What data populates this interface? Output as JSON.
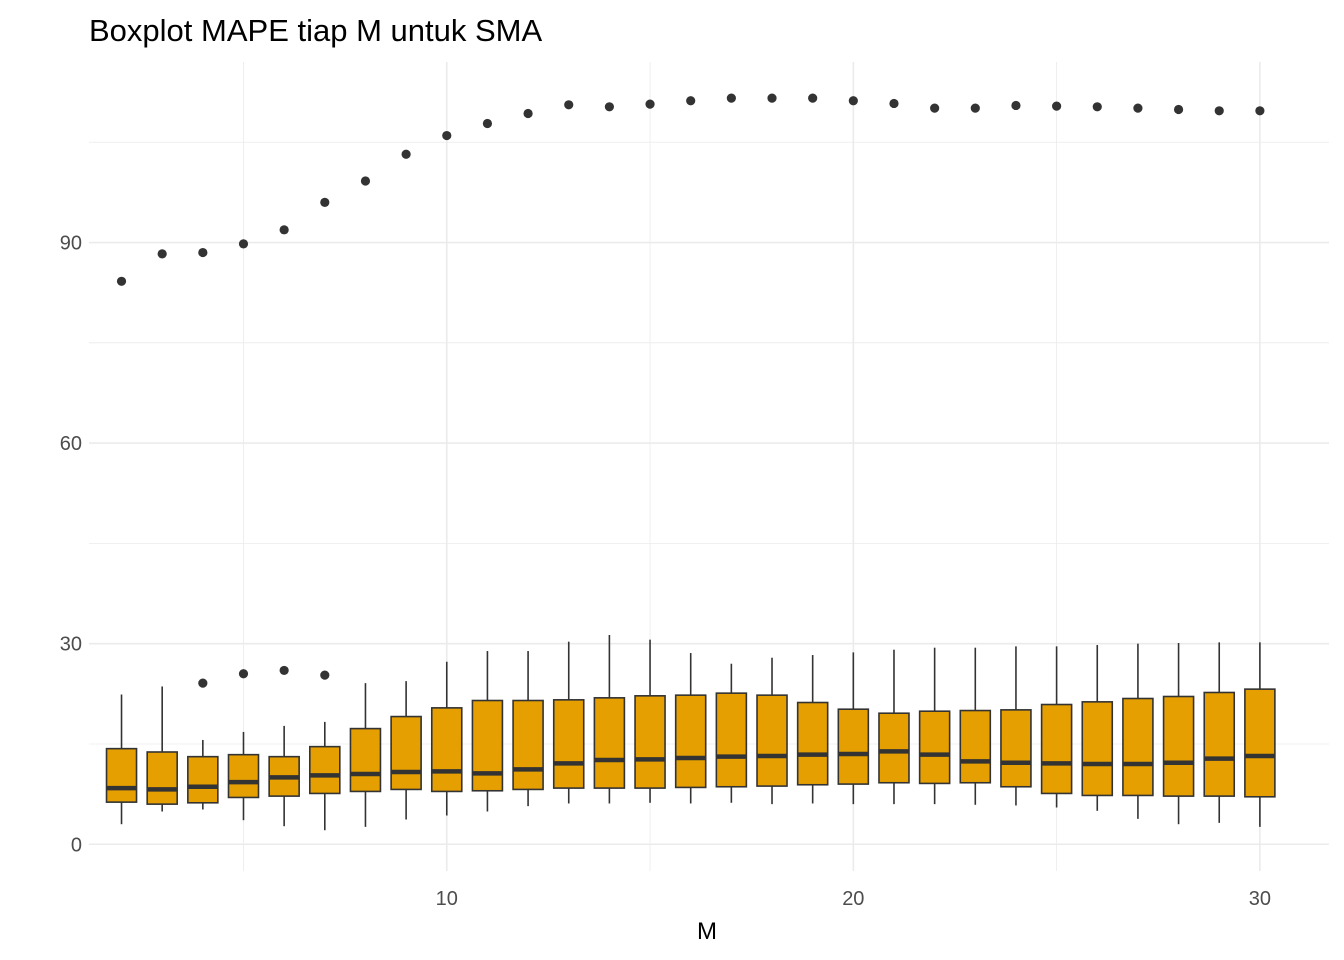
{
  "chart_data": {
    "type": "boxplot",
    "title": "Boxplot MAPE tiap M untuk SMA",
    "xlabel": "M",
    "ylabel": "",
    "xlim": [
      1.2,
      31.7
    ],
    "ylim": [
      -4,
      117
    ],
    "x_ticks": [
      10,
      20,
      30
    ],
    "y_ticks": [
      0,
      30,
      60,
      90
    ],
    "grid": true,
    "legend": "none",
    "box_fill": "#E69F00",
    "line_color": "#333333",
    "boxes": [
      {
        "m": 2,
        "whisker_low": 3.0,
        "q1": 6.3,
        "median": 8.4,
        "q3": 14.3,
        "whisker_high": 22.4,
        "outliers": [
          84.2
        ]
      },
      {
        "m": 3,
        "whisker_low": 4.9,
        "q1": 6.0,
        "median": 8.2,
        "q3": 13.8,
        "whisker_high": 23.6,
        "outliers": [
          88.3
        ]
      },
      {
        "m": 4,
        "whisker_low": 5.2,
        "q1": 6.2,
        "median": 8.6,
        "q3": 13.1,
        "whisker_high": 15.6,
        "outliers": [
          24.1,
          88.5
        ]
      },
      {
        "m": 5,
        "whisker_low": 3.6,
        "q1": 7.0,
        "median": 9.3,
        "q3": 13.4,
        "whisker_high": 16.8,
        "outliers": [
          25.5,
          89.8
        ]
      },
      {
        "m": 6,
        "whisker_low": 2.7,
        "q1": 7.2,
        "median": 10.0,
        "q3": 13.1,
        "whisker_high": 17.7,
        "outliers": [
          26.0,
          91.9
        ]
      },
      {
        "m": 7,
        "whisker_low": 2.1,
        "q1": 7.6,
        "median": 10.3,
        "q3": 14.6,
        "whisker_high": 18.3,
        "outliers": [
          25.3,
          96.0
        ]
      },
      {
        "m": 8,
        "whisker_low": 2.6,
        "q1": 7.9,
        "median": 10.5,
        "q3": 17.3,
        "whisker_high": 24.1,
        "outliers": [
          99.2
        ]
      },
      {
        "m": 9,
        "whisker_low": 3.7,
        "q1": 8.2,
        "median": 10.8,
        "q3": 19.1,
        "whisker_high": 24.4,
        "outliers": [
          103.2
        ]
      },
      {
        "m": 10,
        "whisker_low": 4.3,
        "q1": 7.9,
        "median": 10.9,
        "q3": 20.4,
        "whisker_high": 27.3,
        "outliers": [
          106.0
        ]
      },
      {
        "m": 11,
        "whisker_low": 4.9,
        "q1": 8.0,
        "median": 10.6,
        "q3": 21.5,
        "whisker_high": 28.9,
        "outliers": [
          107.8
        ]
      },
      {
        "m": 12,
        "whisker_low": 5.7,
        "q1": 8.2,
        "median": 11.2,
        "q3": 21.5,
        "whisker_high": 28.9,
        "outliers": [
          109.3
        ]
      },
      {
        "m": 13,
        "whisker_low": 6.1,
        "q1": 8.4,
        "median": 12.1,
        "q3": 21.6,
        "whisker_high": 30.3,
        "outliers": [
          110.6
        ]
      },
      {
        "m": 14,
        "whisker_low": 6.1,
        "q1": 8.4,
        "median": 12.6,
        "q3": 21.9,
        "whisker_high": 31.3,
        "outliers": [
          110.3
        ]
      },
      {
        "m": 15,
        "whisker_low": 6.2,
        "q1": 8.4,
        "median": 12.7,
        "q3": 22.2,
        "whisker_high": 30.6,
        "outliers": [
          110.7
        ]
      },
      {
        "m": 16,
        "whisker_low": 6.1,
        "q1": 8.5,
        "median": 12.9,
        "q3": 22.3,
        "whisker_high": 28.6,
        "outliers": [
          111.2
        ]
      },
      {
        "m": 17,
        "whisker_low": 6.2,
        "q1": 8.6,
        "median": 13.1,
        "q3": 22.6,
        "whisker_high": 27.0,
        "outliers": [
          111.6
        ]
      },
      {
        "m": 18,
        "whisker_low": 6.0,
        "q1": 8.7,
        "median": 13.2,
        "q3": 22.3,
        "whisker_high": 27.9,
        "outliers": [
          111.6
        ]
      },
      {
        "m": 19,
        "whisker_low": 6.1,
        "q1": 8.9,
        "median": 13.4,
        "q3": 21.2,
        "whisker_high": 28.3,
        "outliers": [
          111.6
        ]
      },
      {
        "m": 20,
        "whisker_low": 6.0,
        "q1": 9.0,
        "median": 13.5,
        "q3": 20.2,
        "whisker_high": 28.7,
        "outliers": [
          111.2
        ]
      },
      {
        "m": 21,
        "whisker_low": 6.0,
        "q1": 9.2,
        "median": 13.9,
        "q3": 19.6,
        "whisker_high": 29.1,
        "outliers": [
          110.8
        ]
      },
      {
        "m": 22,
        "whisker_low": 6.0,
        "q1": 9.1,
        "median": 13.4,
        "q3": 19.9,
        "whisker_high": 29.4,
        "outliers": [
          110.1
        ]
      },
      {
        "m": 23,
        "whisker_low": 5.9,
        "q1": 9.2,
        "median": 12.4,
        "q3": 20.0,
        "whisker_high": 29.4,
        "outliers": [
          110.1
        ]
      },
      {
        "m": 24,
        "whisker_low": 5.8,
        "q1": 8.6,
        "median": 12.2,
        "q3": 20.1,
        "whisker_high": 29.6,
        "outliers": [
          110.5
        ]
      },
      {
        "m": 25,
        "whisker_low": 5.5,
        "q1": 7.6,
        "median": 12.1,
        "q3": 20.9,
        "whisker_high": 29.6,
        "outliers": [
          110.4
        ]
      },
      {
        "m": 26,
        "whisker_low": 5.0,
        "q1": 7.3,
        "median": 12.0,
        "q3": 21.3,
        "whisker_high": 29.8,
        "outliers": [
          110.3
        ]
      },
      {
        "m": 27,
        "whisker_low": 3.8,
        "q1": 7.3,
        "median": 12.0,
        "q3": 21.8,
        "whisker_high": 30.0,
        "outliers": [
          110.1
        ]
      },
      {
        "m": 28,
        "whisker_low": 3.0,
        "q1": 7.2,
        "median": 12.2,
        "q3": 22.1,
        "whisker_high": 30.1,
        "outliers": [
          109.9
        ]
      },
      {
        "m": 29,
        "whisker_low": 3.2,
        "q1": 7.2,
        "median": 12.8,
        "q3": 22.7,
        "whisker_high": 30.2,
        "outliers": [
          109.7
        ]
      },
      {
        "m": 30,
        "whisker_low": 2.6,
        "q1": 7.1,
        "median": 13.2,
        "q3": 23.2,
        "whisker_high": 30.2,
        "outliers": [
          109.7
        ]
      }
    ]
  }
}
